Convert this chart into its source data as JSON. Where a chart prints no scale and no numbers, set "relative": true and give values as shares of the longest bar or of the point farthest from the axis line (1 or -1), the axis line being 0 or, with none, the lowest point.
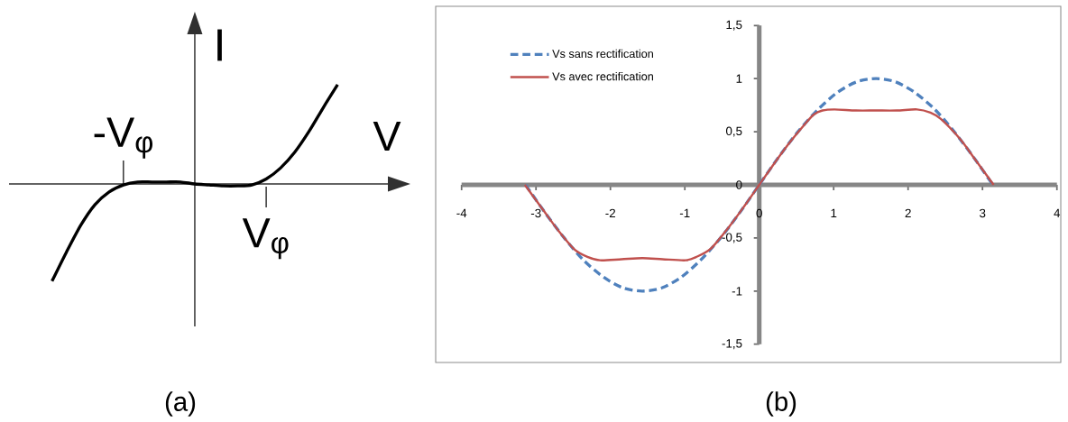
{
  "chart_data": [
    {
      "type": "line",
      "relative": true,
      "xlabel": "V",
      "ylabel": "I",
      "categories": [
        null,
        null,
        null,
        null,
        null,
        "-V$_{φ}$",
        null,
        null,
        null,
        null,
        null,
        null,
        null,
        null,
        null,
        "V$_{φ}$",
        null,
        null,
        null,
        null,
        null
      ],
      "series": [
        {
          "color": "#000000",
          "values": [
            -0.98,
            -0.69,
            -0.42,
            -0.21,
            -0.08,
            -0.01,
            0.02,
            0.02,
            0.02,
            0.02,
            0,
            -0.01,
            -0.02,
            -0.02,
            -0.01,
            0.05,
            0.16,
            0.32,
            0.53,
            0.77,
            1
          ]
        }
      ],
      "annotations": [
        "(a)"
      ]
    },
    {
      "type": "line",
      "xlim": [
        -4,
        4
      ],
      "ylim": [
        -1.5,
        1.5
      ],
      "xticks": [
        -4,
        -3,
        -2,
        -1,
        0,
        1,
        2,
        3,
        4
      ],
      "yticks": [
        {
          "value": -1.5,
          "label": "-1,5"
        },
        -1,
        {
          "value": -0.5,
          "label": "-0,5"
        },
        0,
        {
          "value": 0.5,
          "label": "0,5"
        },
        1,
        {
          "value": 1.5,
          "label": "1,5"
        }
      ],
      "legend": "top left",
      "series": [
        {
          "name": "Vs sans rectification",
          "color": "#4f81bd",
          "line_style": "dashed",
          "x": [
            -3.14,
            -2.88,
            -2.62,
            -2.36,
            -2.09,
            -1.83,
            -1.57,
            -1.31,
            -1.05,
            -0.79,
            -0.52,
            -0.26,
            0,
            0.26,
            0.52,
            0.79,
            1.05,
            1.31,
            1.57,
            1.83,
            2.09,
            2.36,
            2.62,
            2.88,
            3.14
          ],
          "values": [
            0,
            -0.26,
            -0.5,
            -0.71,
            -0.87,
            -0.97,
            -1,
            -0.97,
            -0.87,
            -0.71,
            -0.5,
            -0.26,
            0,
            0.26,
            0.5,
            0.71,
            0.87,
            0.97,
            1,
            0.97,
            0.87,
            0.71,
            0.5,
            0.26,
            0
          ]
        },
        {
          "name": "Vs avec rectification",
          "color": "#c0504d",
          "line_style": "solid",
          "x": [
            -3.15,
            -2.9,
            -2.7,
            -2.48,
            -2.3,
            -2.14,
            -1.85,
            -1.57,
            -1.3,
            -0.99,
            -0.85,
            -0.65,
            -0.4,
            -0.2,
            0,
            0.2,
            0.4,
            0.6,
            0.73,
            0.85,
            1.01,
            1.3,
            1.57,
            1.85,
            2.12,
            2.3,
            2.44,
            2.7,
            2.9,
            3.15
          ],
          "values": [
            0,
            -0.24,
            -0.43,
            -0.61,
            -0.68,
            -0.71,
            -0.7,
            -0.69,
            -0.7,
            -0.71,
            -0.68,
            -0.6,
            -0.39,
            -0.2,
            0,
            0.2,
            0.39,
            0.56,
            0.66,
            0.7,
            0.71,
            0.7,
            0.7,
            0.7,
            0.71,
            0.68,
            0.62,
            0.43,
            0.24,
            0
          ]
        }
      ],
      "annotations": [
        "(b)"
      ]
    }
  ]
}
